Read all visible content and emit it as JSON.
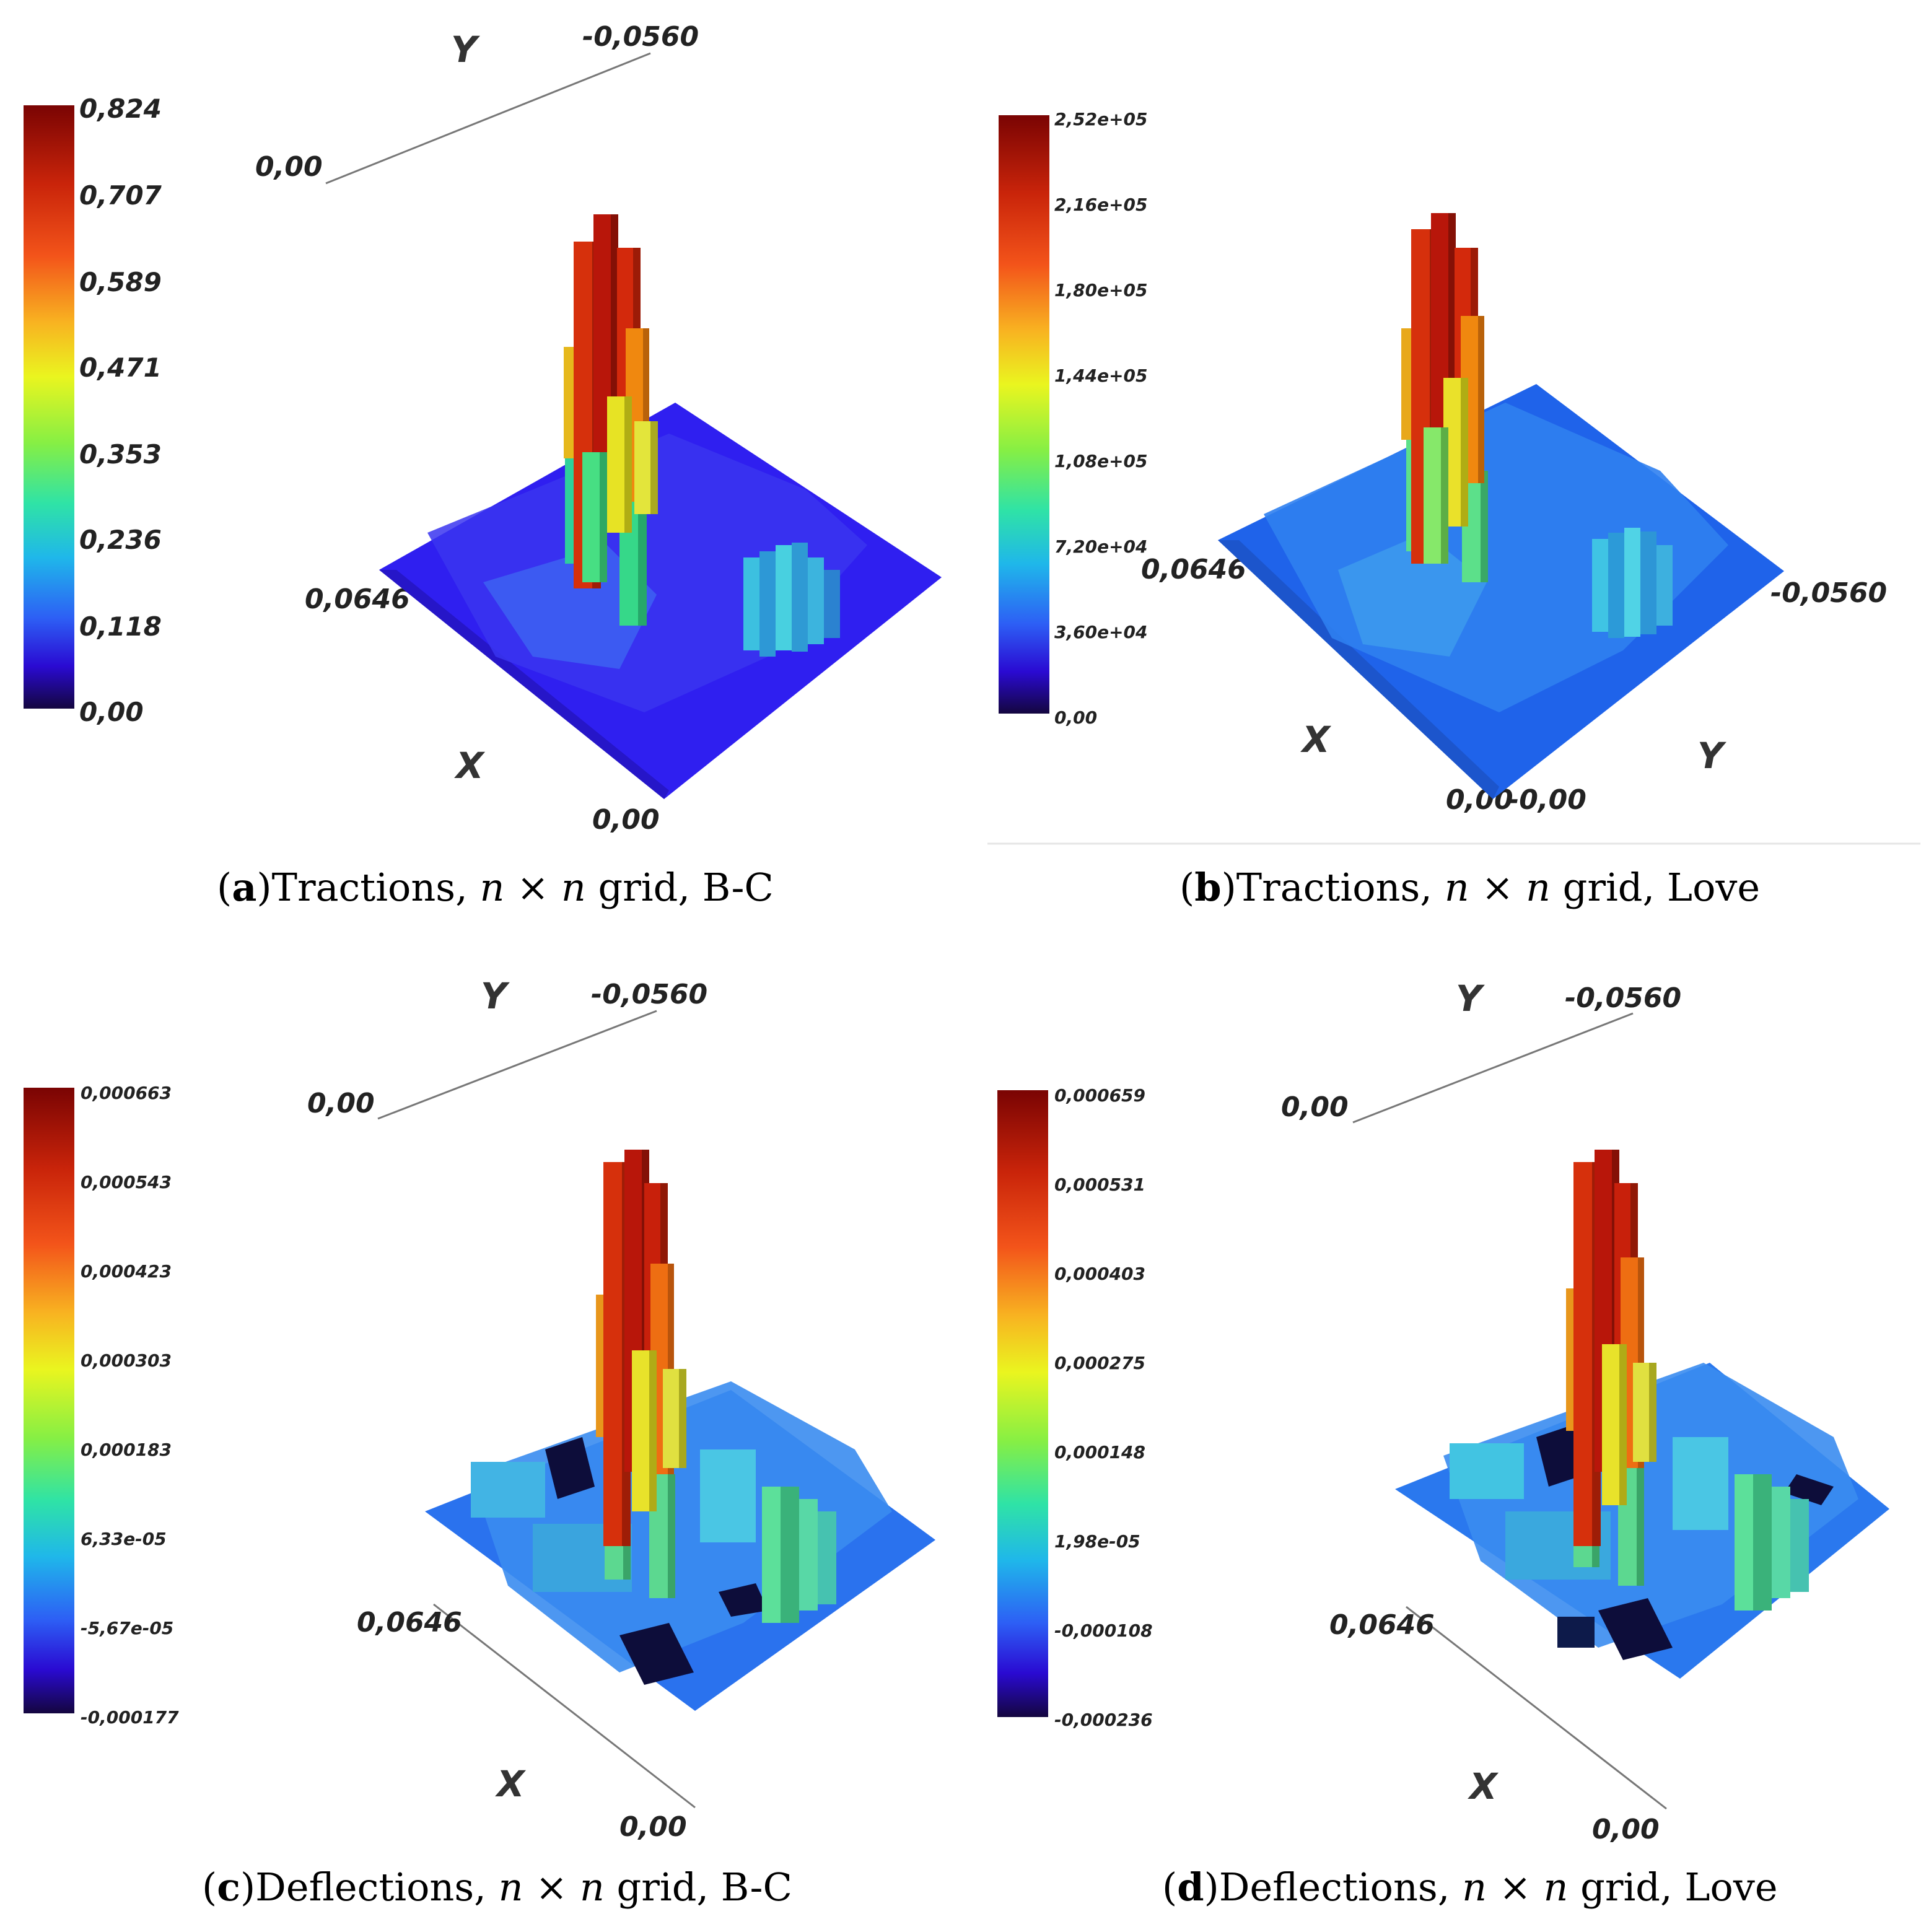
{
  "panels": [
    {
      "id": "a",
      "caption": {
        "tag": "a",
        "pre": "Tractions, ",
        "v1": "n",
        "times": " × ",
        "v2": "n",
        "post": " grid, B-C"
      },
      "colorbar_ticks": [
        "0,824",
        "0,707",
        "0,589",
        "0,471",
        "0,353",
        "0,236",
        "0,118",
        "0,00"
      ],
      "axis_labels": {
        "corner_back": "0,00",
        "y_end": "-0,0560",
        "x_end": "0,0646",
        "x_zero": "0,00",
        "y_letter": "Y",
        "x_letter": "X"
      }
    },
    {
      "id": "b",
      "caption": {
        "tag": "b",
        "pre": "Tractions, ",
        "v1": "n",
        "times": " × ",
        "v2": "n",
        "post": " grid, Love"
      },
      "colorbar_ticks": [
        "2,52e+05",
        "2,16e+05",
        "1,80e+05",
        "1,44e+05",
        "1,08e+05",
        "7,20e+04",
        "3,60e+04",
        "0,00"
      ],
      "axis_labels": {
        "x_end": "0,0646",
        "y_end": "-0,0560",
        "x_zero": "0,00",
        "y_zero": "-0,00",
        "x_letter": "X",
        "y_letter": "Y"
      }
    },
    {
      "id": "c",
      "caption": {
        "tag": "c",
        "pre": "Deflections, ",
        "v1": "n",
        "times": " × ",
        "v2": "n",
        "post": " grid, B-C"
      },
      "colorbar_ticks": [
        "0,000663",
        "0,000543",
        "0,000423",
        "0,000303",
        "0,000183",
        "6,33e-05",
        "-5,67e-05",
        "-0,000177"
      ],
      "axis_labels": {
        "corner_back": "0,00",
        "y_end": "-0,0560",
        "x_end": "0,0646",
        "x_zero": "0,00",
        "y_letter": "Y",
        "x_letter": "X"
      }
    },
    {
      "id": "d",
      "caption": {
        "tag": "d",
        "pre": "Deflections, ",
        "v1": "n",
        "times": " × ",
        "v2": "n",
        "post": " grid, Love"
      },
      "colorbar_ticks": [
        "0,000659",
        "0,000531",
        "0,000403",
        "0,000275",
        "0,000148",
        "1,98e-05",
        "-0,000108",
        "-0,000236"
      ],
      "axis_labels": {
        "corner_back": "0,00",
        "y_end": "-0,0560",
        "x_end": "0,0646",
        "x_zero": "0,00",
        "y_letter": "Y",
        "x_letter": "X"
      }
    }
  ],
  "colormap": [
    "#7a0403",
    "#d62f0b",
    "#f7a21b",
    "#f4e51b",
    "#a6e43a",
    "#35d98f",
    "#1fb2e6",
    "#2a5cf5",
    "#2b06c4",
    "#12064f"
  ]
}
